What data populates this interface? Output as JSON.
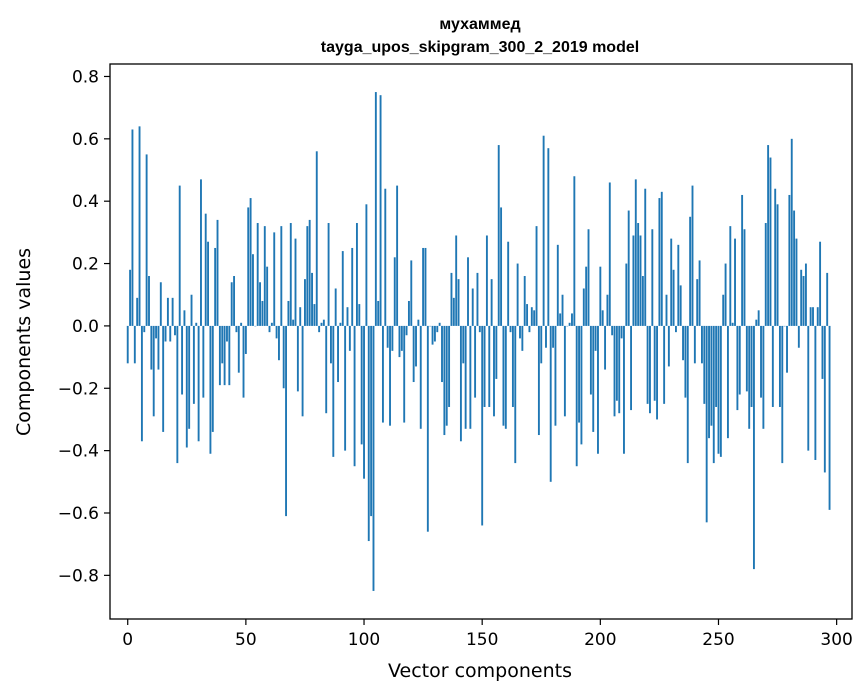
{
  "chart_data": {
    "type": "bar",
    "title": "мухаммед",
    "subtitle": "tayga_upos_skipgram_300_2_2019 model",
    "xlabel": "Vector components",
    "ylabel": "Components values",
    "xlim": [
      -7.5,
      306.5
    ],
    "ylim": [
      -0.94,
      0.84
    ],
    "xticks": [
      0,
      50,
      100,
      150,
      200,
      250,
      300
    ],
    "xtick_labels": [
      "0",
      "50",
      "100",
      "150",
      "200",
      "250",
      "300"
    ],
    "yticks": [
      0.8,
      0.6,
      0.4,
      0.2,
      0.0,
      -0.2,
      -0.4,
      -0.6,
      -0.8
    ],
    "ytick_labels": [
      "0.8",
      "0.6",
      "0.4",
      "0.2",
      "0.0",
      "−0.2",
      "−0.4",
      "−0.6",
      "−0.8"
    ],
    "bar_color": "#1f77b4",
    "grid": false,
    "values": [
      -0.12,
      0.18,
      0.63,
      -0.12,
      0.09,
      0.64,
      -0.37,
      -0.02,
      0.55,
      0.16,
      -0.14,
      -0.29,
      -0.04,
      -0.14,
      0.14,
      -0.34,
      -0.05,
      0.09,
      -0.05,
      0.09,
      -0.03,
      -0.44,
      0.45,
      -0.22,
      0.05,
      -0.39,
      -0.33,
      0.1,
      -0.25,
      0.01,
      -0.37,
      0.47,
      -0.23,
      0.36,
      0.27,
      -0.41,
      -0.34,
      0.25,
      0.34,
      -0.19,
      -0.12,
      -0.19,
      -0.05,
      -0.19,
      0.14,
      0.16,
      -0.02,
      -0.15,
      0.01,
      -0.23,
      -0.09,
      0.38,
      0.41,
      0.23,
      0.0,
      0.33,
      0.14,
      0.08,
      0.32,
      0.19,
      -0.02,
      0.01,
      0.3,
      -0.04,
      -0.11,
      0.32,
      -0.2,
      -0.61,
      0.08,
      0.33,
      0.02,
      0.28,
      -0.21,
      0.06,
      -0.29,
      0.15,
      0.32,
      0.34,
      0.17,
      0.07,
      0.56,
      -0.02,
      0.01,
      0.02,
      -0.28,
      0.33,
      -0.12,
      -0.42,
      0.12,
      -0.18,
      0.01,
      0.24,
      -0.4,
      0.06,
      -0.08,
      0.25,
      -0.45,
      0.33,
      0.07,
      -0.38,
      -0.49,
      0.39,
      -0.69,
      -0.61,
      -0.85,
      0.75,
      0.08,
      0.74,
      -0.31,
      0.44,
      -0.07,
      -0.32,
      -0.08,
      0.22,
      0.45,
      -0.1,
      -0.08,
      -0.31,
      -0.03,
      0.08,
      0.21,
      -0.18,
      -0.13,
      0.02,
      -0.33,
      0.25,
      0.25,
      -0.66,
      0.0,
      -0.06,
      -0.05,
      -0.02,
      0.01,
      -0.18,
      -0.35,
      -0.32,
      -0.26,
      0.17,
      0.09,
      0.29,
      0.15,
      -0.37,
      -0.12,
      -0.33,
      0.22,
      -0.33,
      0.12,
      -0.23,
      0.17,
      -0.02,
      -0.64,
      -0.26,
      0.29,
      -0.26,
      0.15,
      -0.29,
      -0.17,
      0.58,
      0.38,
      -0.32,
      -0.33,
      0.27,
      -0.02,
      -0.26,
      -0.44,
      0.2,
      -0.04,
      -0.08,
      0.16,
      0.07,
      -0.02,
      0.06,
      0.05,
      0.32,
      -0.35,
      -0.12,
      0.61,
      -0.07,
      0.57,
      -0.5,
      -0.07,
      -0.32,
      0.26,
      0.04,
      0.1,
      -0.29,
      0.0,
      0.01,
      0.04,
      0.48,
      -0.45,
      -0.31,
      -0.38,
      0.12,
      0.19,
      0.31,
      -0.22,
      -0.34,
      -0.08,
      -0.41,
      0.19,
      0.05,
      -0.14,
      0.1,
      0.46,
      -0.03,
      -0.29,
      -0.24,
      -0.28,
      -0.04,
      -0.41,
      0.2,
      0.37,
      -0.27,
      0.29,
      0.47,
      0.33,
      0.29,
      0.16,
      0.44,
      -0.25,
      -0.28,
      0.31,
      -0.24,
      -0.3,
      0.41,
      0.43,
      -0.25,
      0.1,
      -0.13,
      0.28,
      0.18,
      -0.02,
      0.26,
      0.13,
      -0.11,
      -0.23,
      -0.44,
      0.35,
      0.45,
      -0.12,
      0.15,
      0.21,
      -0.12,
      -0.25,
      -0.63,
      -0.36,
      -0.32,
      -0.44,
      -0.26,
      -0.41,
      -0.42,
      0.1,
      0.2,
      -0.36,
      0.32,
      0.01,
      0.28,
      -0.27,
      -0.22,
      0.42,
      0.31,
      -0.21,
      -0.33,
      -0.26,
      -0.78,
      0.02,
      0.05,
      -0.23,
      -0.33,
      0.33,
      0.58,
      0.54,
      -0.26,
      0.44,
      0.39,
      -0.26,
      -0.44,
      0.0,
      -0.15,
      0.42,
      0.6,
      0.37,
      0.28,
      -0.07,
      0.18,
      0.16,
      0.2,
      -0.4,
      0.06,
      0.06,
      -0.43,
      0.06,
      0.27,
      -0.17,
      -0.47,
      0.17,
      -0.59
    ]
  }
}
